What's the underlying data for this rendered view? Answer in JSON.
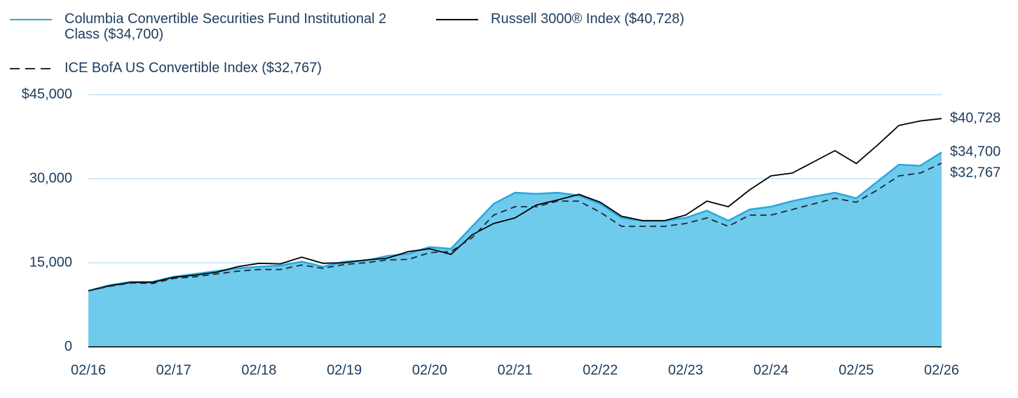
{
  "chart_data": {
    "type": "area-line",
    "x": [
      "02/16",
      "05/16",
      "08/16",
      "11/16",
      "02/17",
      "05/17",
      "08/17",
      "11/17",
      "02/18",
      "05/18",
      "08/18",
      "11/18",
      "02/19",
      "05/19",
      "08/19",
      "11/19",
      "02/20",
      "05/20",
      "08/20",
      "11/20",
      "02/21",
      "05/21",
      "08/21",
      "11/21",
      "02/22",
      "05/22",
      "08/22",
      "11/22",
      "02/23",
      "05/23",
      "08/23",
      "11/23",
      "02/24",
      "05/24",
      "08/24",
      "11/24",
      "02/25",
      "05/25",
      "08/25",
      "11/25",
      "02/26"
    ],
    "xticks": [
      0,
      4,
      8,
      12,
      16,
      20,
      24,
      28,
      32,
      36,
      40
    ],
    "ylim": [
      0,
      45000
    ],
    "yticks": [
      0,
      {
        "value": 15000,
        "label": "15,000"
      },
      {
        "value": 30000,
        "label": "30,000"
      },
      {
        "value": 45000,
        "label": "$45,000"
      }
    ],
    "grid": true,
    "series": [
      {
        "name": "Columbia Convertible Securities Fund Institutional 2 Class ($34,700)",
        "color": "#29a8dc",
        "fill": "#6ecbeb",
        "style": "area",
        "end_label": "$34,700",
        "values": [
          10000,
          11000,
          11600,
          11600,
          12500,
          13000,
          13500,
          14000,
          14300,
          14500,
          15200,
          14300,
          15200,
          15400,
          16200,
          16600,
          17800,
          17500,
          21500,
          25500,
          27500,
          27300,
          27500,
          27000,
          25500,
          23000,
          22500,
          22500,
          23000,
          24300,
          22500,
          24500,
          25000,
          26000,
          26800,
          27500,
          26500,
          29500,
          32500,
          32300,
          34700
        ]
      },
      {
        "name": "Russell 3000® Index ($40,728)",
        "color": "#000000",
        "style": "solid",
        "end_label": "$40,728",
        "values": [
          10000,
          10900,
          11500,
          11500,
          12400,
          12800,
          13300,
          14300,
          14900,
          14800,
          16000,
          14900,
          15000,
          15500,
          15800,
          17000,
          17500,
          16500,
          20000,
          22000,
          23000,
          25300,
          26200,
          27200,
          25800,
          23300,
          22500,
          22500,
          23500,
          26000,
          25000,
          28000,
          30500,
          31000,
          33000,
          35000,
          32700,
          36000,
          39500,
          40300,
          40728
        ]
      },
      {
        "name": "ICE BofA US Convertible Index ($32,767)",
        "color": "#1a2a3a",
        "style": "dashed",
        "end_label": "$32,767",
        "values": [
          10000,
          10800,
          11400,
          11300,
          12200,
          12500,
          13000,
          13500,
          13800,
          13800,
          14600,
          14000,
          14700,
          15000,
          15500,
          15600,
          16800,
          17000,
          19500,
          23500,
          25000,
          25000,
          26000,
          26000,
          24000,
          21500,
          21500,
          21500,
          22000,
          23000,
          21500,
          23500,
          23500,
          24500,
          25500,
          26500,
          25800,
          28000,
          30500,
          31000,
          32767
        ]
      }
    ]
  }
}
